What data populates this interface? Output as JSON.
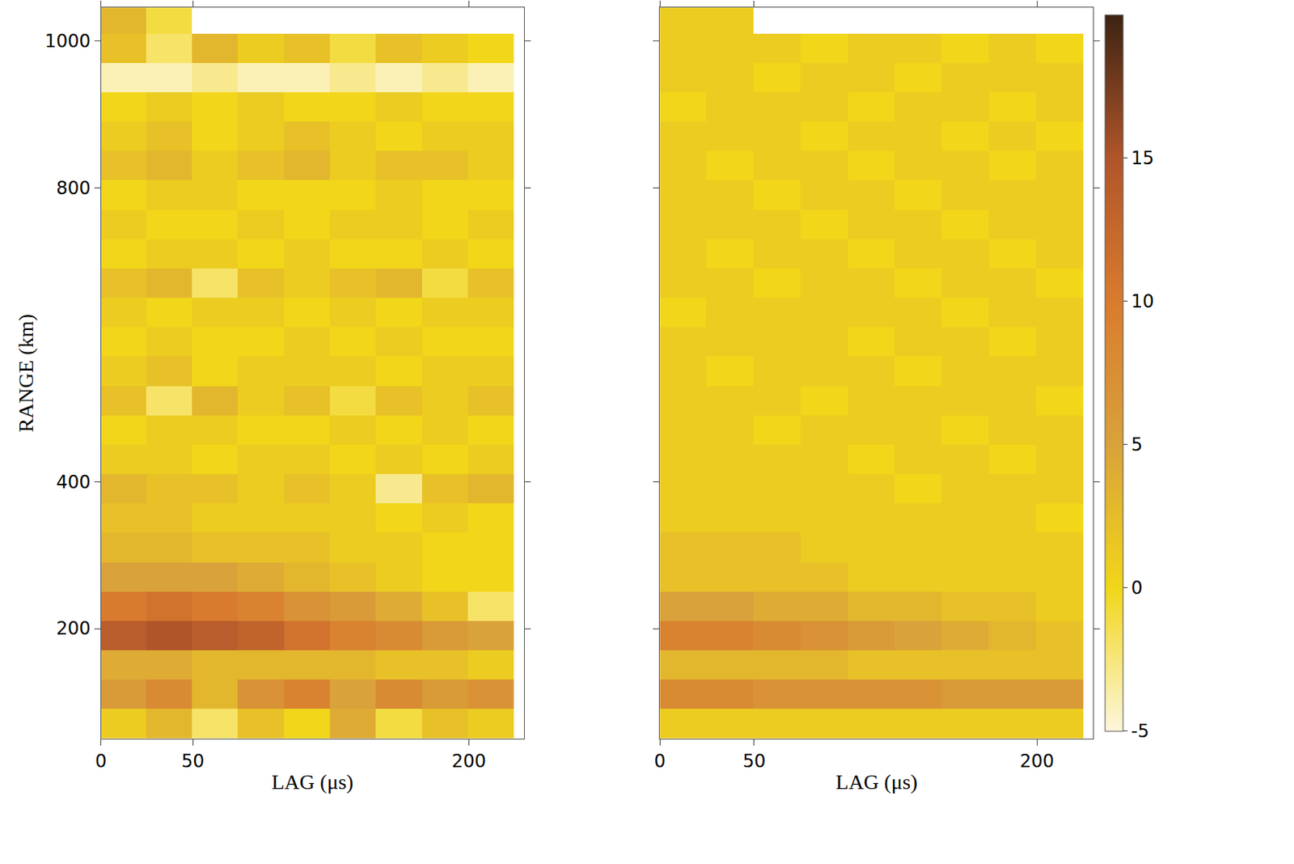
{
  "chart_data": [
    {
      "type": "heatmap",
      "xlabel": "LAG (μs)",
      "ylabel": "RANGE (km)",
      "x": [
        12,
        37,
        62,
        87,
        112,
        137,
        162,
        187,
        212
      ],
      "y": [
        70,
        110,
        150,
        190,
        230,
        270,
        310,
        350,
        390,
        430,
        470,
        510,
        550,
        590,
        630,
        670,
        710,
        750,
        790,
        830,
        870,
        910,
        950,
        990,
        1030
      ],
      "z": [
        [
          1,
          3,
          -2,
          2,
          0,
          4,
          -1,
          2,
          1
        ],
        [
          6,
          8,
          3,
          7,
          9,
          5,
          8,
          6,
          7
        ],
        [
          4,
          4,
          3,
          3,
          3,
          3,
          2,
          2,
          1
        ],
        [
          14,
          15,
          14,
          13,
          11,
          9,
          8,
          6,
          5
        ],
        [
          10,
          11,
          10,
          9,
          7,
          6,
          4,
          2,
          -2
        ],
        [
          5,
          5,
          5,
          4,
          3,
          2,
          1,
          0,
          0
        ],
        [
          3,
          3,
          2,
          2,
          2,
          1,
          1,
          0,
          0
        ],
        [
          2,
          2,
          1,
          1,
          1,
          1,
          0,
          1,
          0
        ],
        [
          3,
          2,
          2,
          1,
          2,
          1,
          -3,
          2,
          3
        ],
        [
          1,
          1,
          0,
          1,
          1,
          0,
          1,
          0,
          1
        ],
        [
          0,
          1,
          1,
          0,
          0,
          1,
          0,
          1,
          0
        ],
        [
          2,
          -2,
          3,
          1,
          2,
          -1,
          2,
          1,
          2
        ],
        [
          1,
          2,
          0,
          1,
          1,
          1,
          0,
          1,
          1
        ],
        [
          0,
          1,
          0,
          0,
          1,
          0,
          1,
          0,
          0
        ],
        [
          1,
          0,
          1,
          1,
          0,
          1,
          0,
          1,
          1
        ],
        [
          2,
          3,
          -2,
          2,
          1,
          2,
          3,
          -1,
          2
        ],
        [
          0,
          1,
          1,
          0,
          1,
          0,
          0,
          1,
          0
        ],
        [
          1,
          0,
          0,
          1,
          0,
          1,
          1,
          0,
          1
        ],
        [
          0,
          1,
          1,
          0,
          0,
          0,
          1,
          0,
          0
        ],
        [
          2,
          3,
          1,
          2,
          3,
          1,
          2,
          2,
          1
        ],
        [
          1,
          2,
          0,
          1,
          2,
          1,
          0,
          1,
          1
        ],
        [
          0,
          1,
          0,
          1,
          0,
          0,
          1,
          0,
          0
        ],
        [
          -4,
          -4,
          -3,
          -4,
          -4,
          -3,
          -4,
          -3,
          -4
        ],
        [
          2,
          -2,
          3,
          1,
          2,
          -1,
          2,
          1,
          0
        ],
        [
          3,
          -1,
          null,
          null,
          null,
          null,
          null,
          null,
          null
        ]
      ],
      "xlim": [
        0,
        230
      ],
      "ylim": [
        50,
        1045
      ],
      "xticks": [
        0,
        50,
        200
      ],
      "yticks": [
        200,
        400,
        800,
        1000
      ]
    },
    {
      "type": "heatmap",
      "xlabel": "LAG (μs)",
      "x": [
        12,
        37,
        62,
        87,
        112,
        137,
        162,
        187,
        212
      ],
      "y": [
        70,
        110,
        150,
        190,
        230,
        270,
        310,
        350,
        390,
        430,
        470,
        510,
        550,
        590,
        630,
        670,
        710,
        750,
        790,
        830,
        870,
        910,
        950,
        990,
        1030
      ],
      "z": [
        [
          1,
          1,
          1,
          1,
          1,
          1,
          1,
          1,
          1
        ],
        [
          8,
          8,
          7,
          7,
          7,
          7,
          6,
          6,
          6
        ],
        [
          3,
          3,
          3,
          3,
          2,
          2,
          2,
          2,
          2
        ],
        [
          9,
          9,
          8,
          7,
          6,
          5,
          4,
          3,
          2
        ],
        [
          5,
          5,
          4,
          4,
          3,
          3,
          2,
          2,
          1
        ],
        [
          2,
          2,
          2,
          2,
          1,
          1,
          1,
          1,
          1
        ],
        [
          2,
          2,
          2,
          1,
          1,
          1,
          1,
          1,
          1
        ],
        [
          1,
          1,
          1,
          1,
          1,
          1,
          1,
          1,
          0
        ],
        [
          1,
          1,
          1,
          1,
          1,
          0,
          1,
          1,
          1
        ],
        [
          1,
          1,
          1,
          1,
          0,
          1,
          1,
          0,
          1
        ],
        [
          1,
          1,
          0,
          1,
          1,
          1,
          0,
          1,
          1
        ],
        [
          1,
          1,
          1,
          0,
          1,
          1,
          1,
          1,
          0
        ],
        [
          1,
          0,
          1,
          1,
          1,
          0,
          1,
          1,
          1
        ],
        [
          1,
          1,
          1,
          1,
          0,
          1,
          1,
          0,
          1
        ],
        [
          0,
          1,
          1,
          1,
          1,
          1,
          0,
          1,
          1
        ],
        [
          1,
          1,
          0,
          1,
          1,
          0,
          1,
          1,
          0
        ],
        [
          1,
          0,
          1,
          1,
          0,
          1,
          1,
          0,
          1
        ],
        [
          1,
          1,
          1,
          0,
          1,
          1,
          0,
          1,
          1
        ],
        [
          1,
          1,
          0,
          1,
          1,
          0,
          1,
          1,
          1
        ],
        [
          1,
          0,
          1,
          1,
          0,
          1,
          1,
          0,
          1
        ],
        [
          1,
          1,
          1,
          0,
          1,
          1,
          0,
          1,
          0
        ],
        [
          0,
          1,
          1,
          1,
          0,
          1,
          1,
          0,
          1
        ],
        [
          1,
          1,
          0,
          1,
          1,
          0,
          1,
          1,
          1
        ],
        [
          1,
          1,
          1,
          0,
          1,
          1,
          0,
          1,
          0
        ],
        [
          1,
          1,
          null,
          null,
          null,
          null,
          null,
          null,
          null
        ]
      ],
      "xlim": [
        0,
        230
      ],
      "ylim": [
        50,
        1045
      ],
      "xticks": [
        0,
        50,
        200
      ],
      "yticks": [
        200,
        400,
        800,
        1000
      ],
      "tick_labels": "x",
      "colorbar_range": [
        -5,
        20
      ],
      "colorbar_ticks": [
        -5,
        0,
        5,
        10,
        15
      ]
    }
  ]
}
